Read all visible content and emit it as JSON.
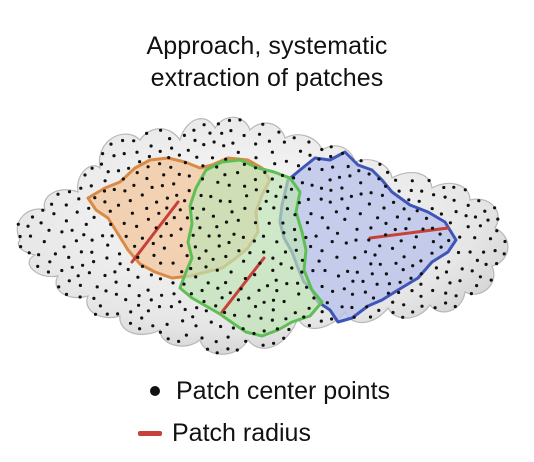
{
  "title": {
    "line1": "Approach, systematic",
    "line2": "extraction of patches"
  },
  "legend": {
    "center_points": "Patch center points",
    "radius": "Patch radius"
  },
  "colors": {
    "surface_fill": "#eeeeee",
    "surface_stroke": "#bdbdbd",
    "point": "#111111",
    "patch_orange": "#d98b46",
    "patch_orange_fill": "#f3c9a2",
    "patch_green": "#5fbf55",
    "patch_green_fill": "#bfe3b5",
    "patch_blue": "#3f56b8",
    "patch_blue_fill": "#b9c2ea",
    "radius_line": "#c8403a"
  },
  "patches": [
    {
      "name": "orange-patch",
      "color_key": "patch_orange"
    },
    {
      "name": "green-patch",
      "color_key": "patch_green"
    },
    {
      "name": "blue-patch",
      "color_key": "patch_blue"
    }
  ]
}
